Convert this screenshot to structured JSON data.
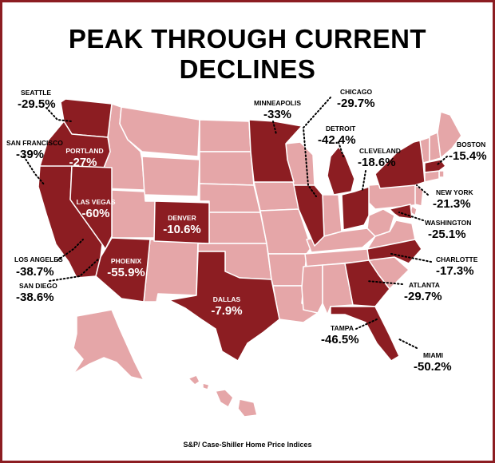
{
  "title": "PEAK THROUGH CURRENT DECLINES",
  "source": "S&P/ Case-Shiller Home Price Indices",
  "colors": {
    "highlight": "#8c1d22",
    "base": "#e5a6a8",
    "border": "#ffffff",
    "frame": "#8c1d22"
  },
  "cities": [
    {
      "name": "SEATTLE",
      "value": "-29.5%"
    },
    {
      "name": "SAN FRANCISCO",
      "value": "-39%"
    },
    {
      "name": "PORTLAND",
      "value": "-27%"
    },
    {
      "name": "LAS VEGAS",
      "value": "-60%"
    },
    {
      "name": "LOS ANGELES",
      "value": "-38.7%"
    },
    {
      "name": "SAN DIEGO",
      "value": "-38.6%"
    },
    {
      "name": "PHOENIX",
      "value": "-55.9%"
    },
    {
      "name": "DENVER",
      "value": "-10.6%"
    },
    {
      "name": "DALLAS",
      "value": "-7.9%"
    },
    {
      "name": "MINNEAPOLIS",
      "value": "-33%"
    },
    {
      "name": "CHICAGO",
      "value": "-29.7%"
    },
    {
      "name": "DETROIT",
      "value": "-42.4%"
    },
    {
      "name": "CLEVELAND",
      "value": "-18.6%"
    },
    {
      "name": "BOSTON",
      "value": "-15.4%"
    },
    {
      "name": "NEW YORK",
      "value": "-21.3%"
    },
    {
      "name": "WASHINGTON",
      "value": "-25.1%"
    },
    {
      "name": "CHARLOTTE",
      "value": "-17.3%"
    },
    {
      "name": "ATLANTA",
      "value": "-29.7%"
    },
    {
      "name": "TAMPA",
      "value": "-46.5%"
    },
    {
      "name": "MIAMI",
      "value": "-50.2%"
    }
  ]
}
